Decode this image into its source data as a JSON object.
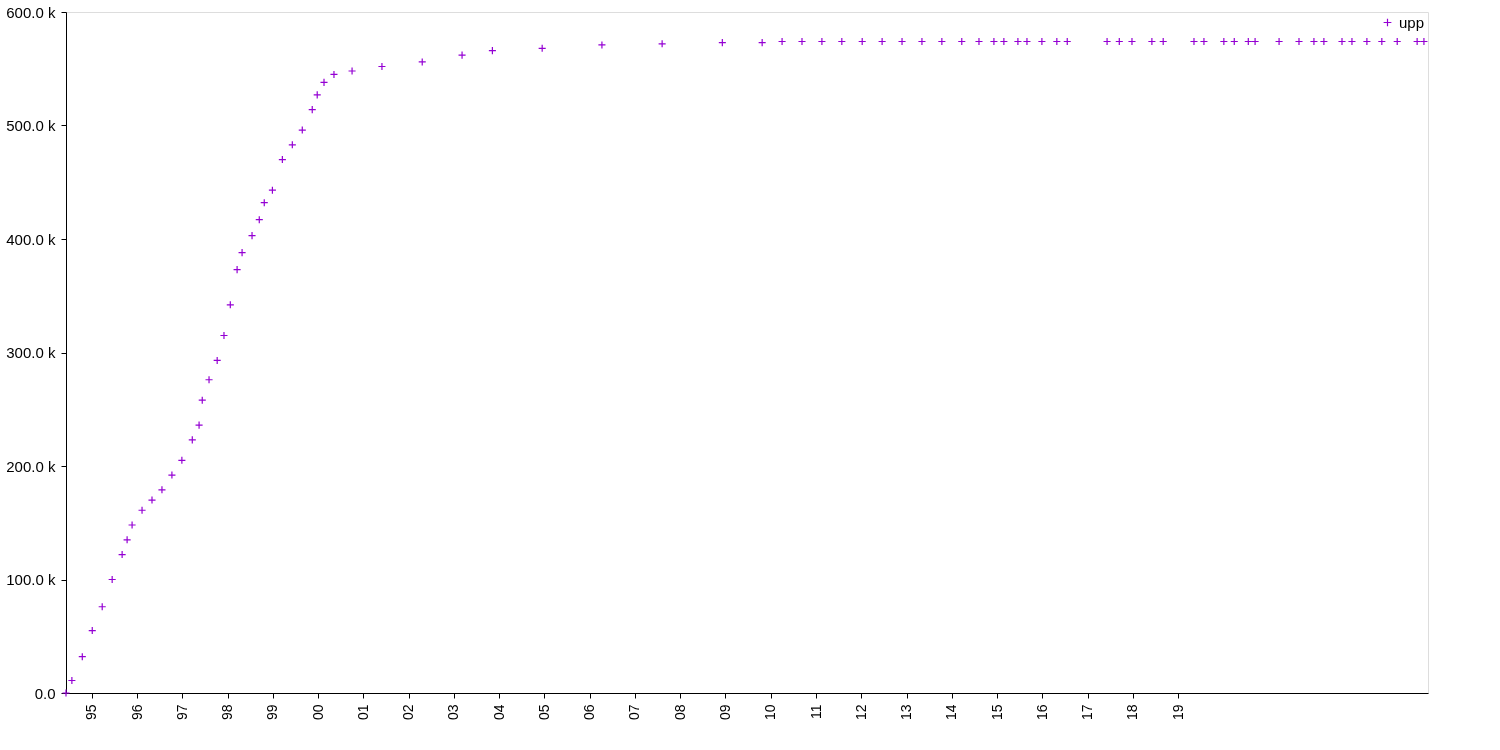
{
  "chart_data": {
    "type": "scatter",
    "marker": "cross",
    "legend": "top right",
    "grid": false,
    "xlim": [
      1994.43,
      2024.52
    ],
    "xticks": [
      {
        "value": 1995,
        "label": "95"
      },
      {
        "value": 1996,
        "label": "96"
      },
      {
        "value": 1997,
        "label": "97"
      },
      {
        "value": 1998,
        "label": "98"
      },
      {
        "value": 1999,
        "label": "99"
      },
      {
        "value": 2000,
        "label": "00"
      },
      {
        "value": 2001,
        "label": "01"
      },
      {
        "value": 2002,
        "label": "02"
      },
      {
        "value": 2003,
        "label": "03"
      },
      {
        "value": 2004,
        "label": "04"
      },
      {
        "value": 2005,
        "label": "05"
      },
      {
        "value": 2006,
        "label": "06"
      },
      {
        "value": 2007,
        "label": "07"
      },
      {
        "value": 2008,
        "label": "08"
      },
      {
        "value": 2009,
        "label": "09"
      },
      {
        "value": 2010,
        "label": "10"
      },
      {
        "value": 2011,
        "label": "11"
      },
      {
        "value": 2012,
        "label": "12"
      },
      {
        "value": 2013,
        "label": "13"
      },
      {
        "value": 2014,
        "label": "14"
      },
      {
        "value": 2015,
        "label": "15"
      },
      {
        "value": 2016,
        "label": "16"
      },
      {
        "value": 2017,
        "label": "17"
      },
      {
        "value": 2018,
        "label": "18"
      },
      {
        "value": 2019,
        "label": "19"
      }
    ],
    "ylim": [
      0,
      600000
    ],
    "yticks": [
      {
        "value": 0,
        "label": "0.0"
      },
      {
        "value": 100000,
        "label": "100.0 k"
      },
      {
        "value": 200000,
        "label": "200.0 k"
      },
      {
        "value": 300000,
        "label": "300.0 k"
      },
      {
        "value": 400000,
        "label": "400.0 k"
      },
      {
        "value": 500000,
        "label": "500.0 k"
      },
      {
        "value": 600000,
        "label": "600.0 k"
      }
    ],
    "series": [
      {
        "name": "upp",
        "color": "#9400d3",
        "x": [
          1994.43,
          1994.56,
          1994.79,
          1995.01,
          1995.23,
          1995.45,
          1995.67,
          1995.78,
          1995.89,
          1996.11,
          1996.33,
          1996.55,
          1996.77,
          1996.99,
          1997.22,
          1997.37,
          1997.44,
          1997.59,
          1997.77,
          1997.92,
          1998.06,
          1998.21,
          1998.32,
          1998.54,
          1998.7,
          1998.81,
          1998.99,
          1999.21,
          1999.43,
          1999.65,
          1999.87,
          1999.98,
          2000.13,
          2000.35,
          2000.75,
          2001.41,
          2002.3,
          2003.18,
          2003.85,
          2004.95,
          2006.27,
          2007.6,
          2008.93,
          2009.81,
          2010.25,
          2010.69,
          2011.13,
          2011.57,
          2012.02,
          2012.46,
          2012.9,
          2013.34,
          2013.78,
          2014.22,
          2014.6,
          2014.93,
          2015.15,
          2015.46,
          2015.66,
          2015.99,
          2016.32,
          2016.55,
          2017.43,
          2017.7,
          2017.98,
          2018.42,
          2018.67,
          2019.35,
          2019.57,
          2020.01,
          2020.24,
          2020.55,
          2020.7,
          2021.23,
          2021.67,
          2022.0,
          2022.22,
          2022.62,
          2022.84,
          2023.17,
          2023.5,
          2023.84,
          2024.28,
          2024.43
        ],
        "values": [
          0,
          11000,
          32000,
          55000,
          76000,
          100000,
          122000,
          135000,
          148000,
          161000,
          170000,
          179000,
          192000,
          205000,
          223000,
          236000,
          258000,
          276000,
          293000,
          315000,
          342000,
          373000,
          388000,
          403000,
          417000,
          432000,
          443000,
          470000,
          483000,
          496000,
          514000,
          527000,
          538000,
          545000,
          548000,
          552000,
          556000,
          562000,
          566000,
          568000,
          571000,
          572000,
          573000,
          573000,
          574000,
          574000,
          574000,
          574000,
          574000,
          574000,
          574000,
          574000,
          574000,
          574000,
          574000,
          574000,
          574000,
          574000,
          574000,
          574000,
          574000,
          574000,
          574000,
          574000,
          574000,
          574000,
          574000,
          574000,
          574000,
          574000,
          574000,
          574000,
          574000,
          574000,
          574000,
          574000,
          574000,
          574000,
          574000,
          574000,
          574000,
          574000,
          574000,
          574000
        ]
      }
    ]
  }
}
